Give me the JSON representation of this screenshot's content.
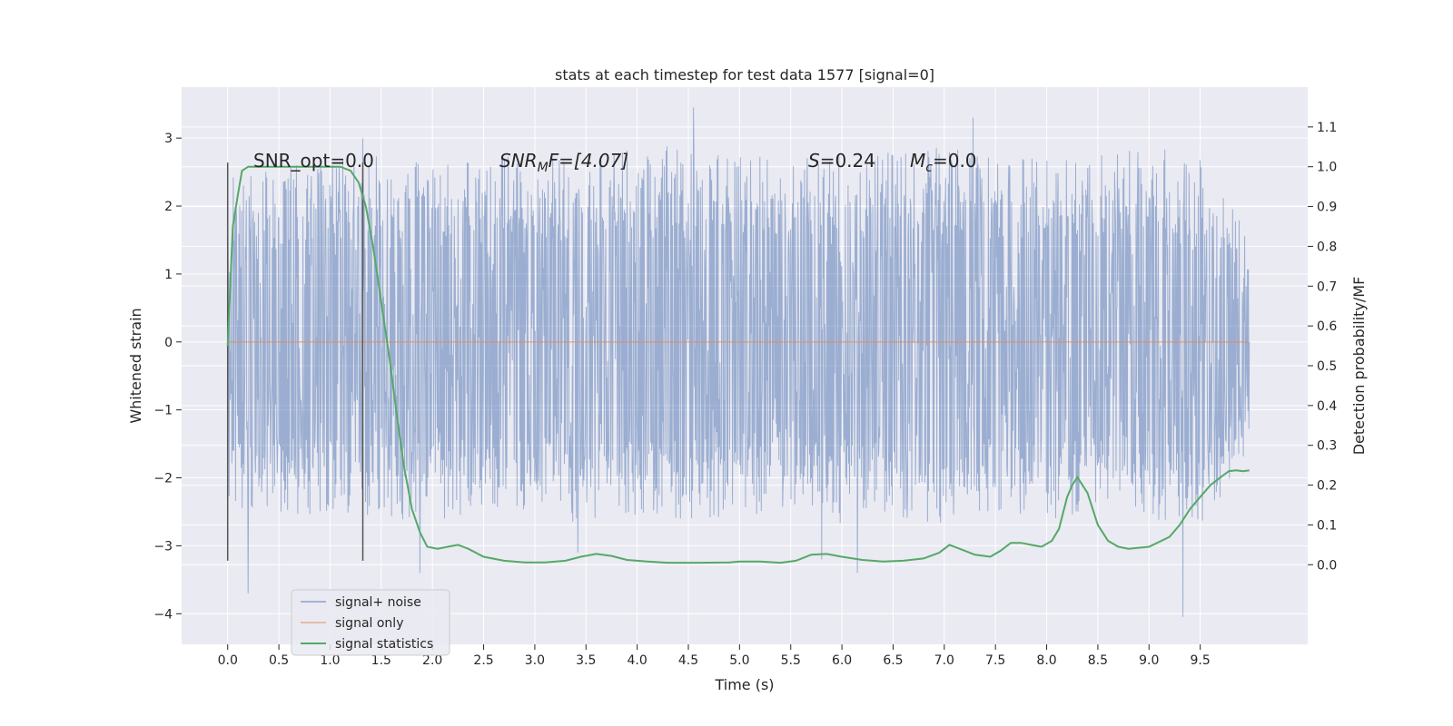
{
  "chart_data": {
    "type": "line",
    "title": "stats at each timestep for test data 1577 [signal=0]",
    "xlabel": "Time (s)",
    "ylabel": "Whitened strain",
    "y2label": "Detection probability/MF",
    "xlim": [
      -0.45,
      10.55
    ],
    "ylim": [
      -4.45,
      3.75
    ],
    "y2lim": [
      -0.2,
      1.2
    ],
    "x_ticks": [
      "0.0",
      "0.5",
      "1.0",
      "1.5",
      "2.0",
      "2.5",
      "3.0",
      "3.5",
      "4.0",
      "4.5",
      "5.0",
      "5.5",
      "6.0",
      "6.5",
      "7.0",
      "7.5",
      "8.0",
      "8.5",
      "9.0",
      "9.5"
    ],
    "y_ticks": [
      "3",
      "2",
      "1",
      "0",
      "−1",
      "−2",
      "−3",
      "−4"
    ],
    "y2_ticks": [
      "1.1",
      "1.0",
      "0.9",
      "0.8",
      "0.7",
      "0.6",
      "0.5",
      "0.4",
      "0.3",
      "0.2",
      "0.1",
      "0.0"
    ],
    "grid": true,
    "legend_position": "lower-left",
    "annotations": {
      "snr_opt": "SNR_opt=0.0",
      "snr_mf_prefix": "SNR",
      "snr_mf_sub": "M",
      "snr_mf_suffix": "F=[4.07]",
      "s_var": "S",
      "s_value": "=0.24",
      "mc_var": "M",
      "mc_sub": "c",
      "mc_value": "=0.0"
    },
    "vertical_markers": [
      {
        "x": 0.0,
        "ymin": -3.22,
        "ymax": 2.64
      },
      {
        "x": 1.32,
        "ymin": -3.22,
        "ymax": 2.64
      }
    ],
    "series": [
      {
        "name": "signal+ noise",
        "color": "#4c72b0",
        "alpha": 0.5,
        "axis": "left",
        "x_range": [
          0.0,
          9.98
        ],
        "envelope": {
          "x": [
            0.0,
            0.5,
            1.0,
            1.5,
            2.0,
            2.5,
            3.0,
            3.5,
            4.0,
            4.5,
            5.0,
            5.5,
            6.0,
            6.5,
            7.0,
            7.5,
            8.0,
            8.5,
            9.0,
            9.5,
            9.98
          ],
          "upper": [
            2.5,
            2.6,
            2.7,
            2.8,
            2.6,
            2.7,
            2.8,
            2.7,
            2.9,
            2.9,
            2.8,
            2.7,
            2.8,
            2.8,
            2.9,
            2.8,
            2.7,
            2.8,
            2.9,
            2.7,
            1.6
          ],
          "lower": [
            -2.6,
            -2.5,
            -2.6,
            -2.6,
            -2.7,
            -2.5,
            -2.5,
            -2.7,
            -2.6,
            -2.6,
            -2.6,
            -2.5,
            -2.7,
            -2.6,
            -2.7,
            -2.5,
            -2.6,
            -2.7,
            -2.6,
            -2.7,
            -1.8
          ]
        },
        "notable_spikes": [
          {
            "x": 0.2,
            "y": -3.7
          },
          {
            "x": 1.32,
            "y": 3.0
          },
          {
            "x": 1.88,
            "y": -3.4
          },
          {
            "x": 4.55,
            "y": 3.45
          },
          {
            "x": 6.15,
            "y": -3.4
          },
          {
            "x": 7.28,
            "y": 3.3
          },
          {
            "x": 9.33,
            "y": -4.05
          },
          {
            "x": 3.42,
            "y": -3.1
          },
          {
            "x": 5.8,
            "y": -3.2
          }
        ]
      },
      {
        "name": "signal only",
        "color": "#dd8452",
        "axis": "left",
        "x": [
          0.0,
          9.98
        ],
        "y": [
          0.0,
          0.0
        ]
      },
      {
        "name": "signal statistics",
        "color": "#55a868",
        "axis": "right",
        "x": [
          0.0,
          0.05,
          0.1,
          0.14,
          0.2,
          0.4,
          0.6,
          0.8,
          1.0,
          1.1,
          1.2,
          1.28,
          1.35,
          1.42,
          1.5,
          1.58,
          1.65,
          1.72,
          1.8,
          1.88,
          1.95,
          2.05,
          2.15,
          2.25,
          2.35,
          2.5,
          2.7,
          2.9,
          3.1,
          3.3,
          3.45,
          3.6,
          3.75,
          3.9,
          4.1,
          4.3,
          4.6,
          4.9,
          5.0,
          5.2,
          5.4,
          5.55,
          5.7,
          5.85,
          6.0,
          6.2,
          6.4,
          6.6,
          6.8,
          6.95,
          7.05,
          7.15,
          7.3,
          7.45,
          7.55,
          7.65,
          7.75,
          7.85,
          7.95,
          8.05,
          8.12,
          8.2,
          8.25,
          8.3,
          8.4,
          8.5,
          8.6,
          8.7,
          8.8,
          9.0,
          9.2,
          9.3,
          9.4,
          9.5,
          9.6,
          9.7,
          9.78,
          9.85,
          9.92,
          9.98
        ],
        "y": [
          0.55,
          0.85,
          0.93,
          0.99,
          1.0,
          1.0,
          1.0,
          1.0,
          1.0,
          1.0,
          0.99,
          0.96,
          0.9,
          0.8,
          0.66,
          0.52,
          0.38,
          0.25,
          0.14,
          0.08,
          0.045,
          0.04,
          0.045,
          0.05,
          0.04,
          0.02,
          0.01,
          0.006,
          0.006,
          0.01,
          0.02,
          0.027,
          0.022,
          0.012,
          0.008,
          0.005,
          0.005,
          0.006,
          0.008,
          0.008,
          0.005,
          0.01,
          0.025,
          0.027,
          0.02,
          0.012,
          0.008,
          0.01,
          0.016,
          0.03,
          0.05,
          0.04,
          0.025,
          0.02,
          0.035,
          0.055,
          0.055,
          0.05,
          0.045,
          0.06,
          0.09,
          0.17,
          0.2,
          0.22,
          0.18,
          0.1,
          0.06,
          0.045,
          0.04,
          0.045,
          0.07,
          0.1,
          0.14,
          0.17,
          0.2,
          0.22,
          0.235,
          0.237,
          0.235,
          0.237
        ]
      }
    ]
  }
}
